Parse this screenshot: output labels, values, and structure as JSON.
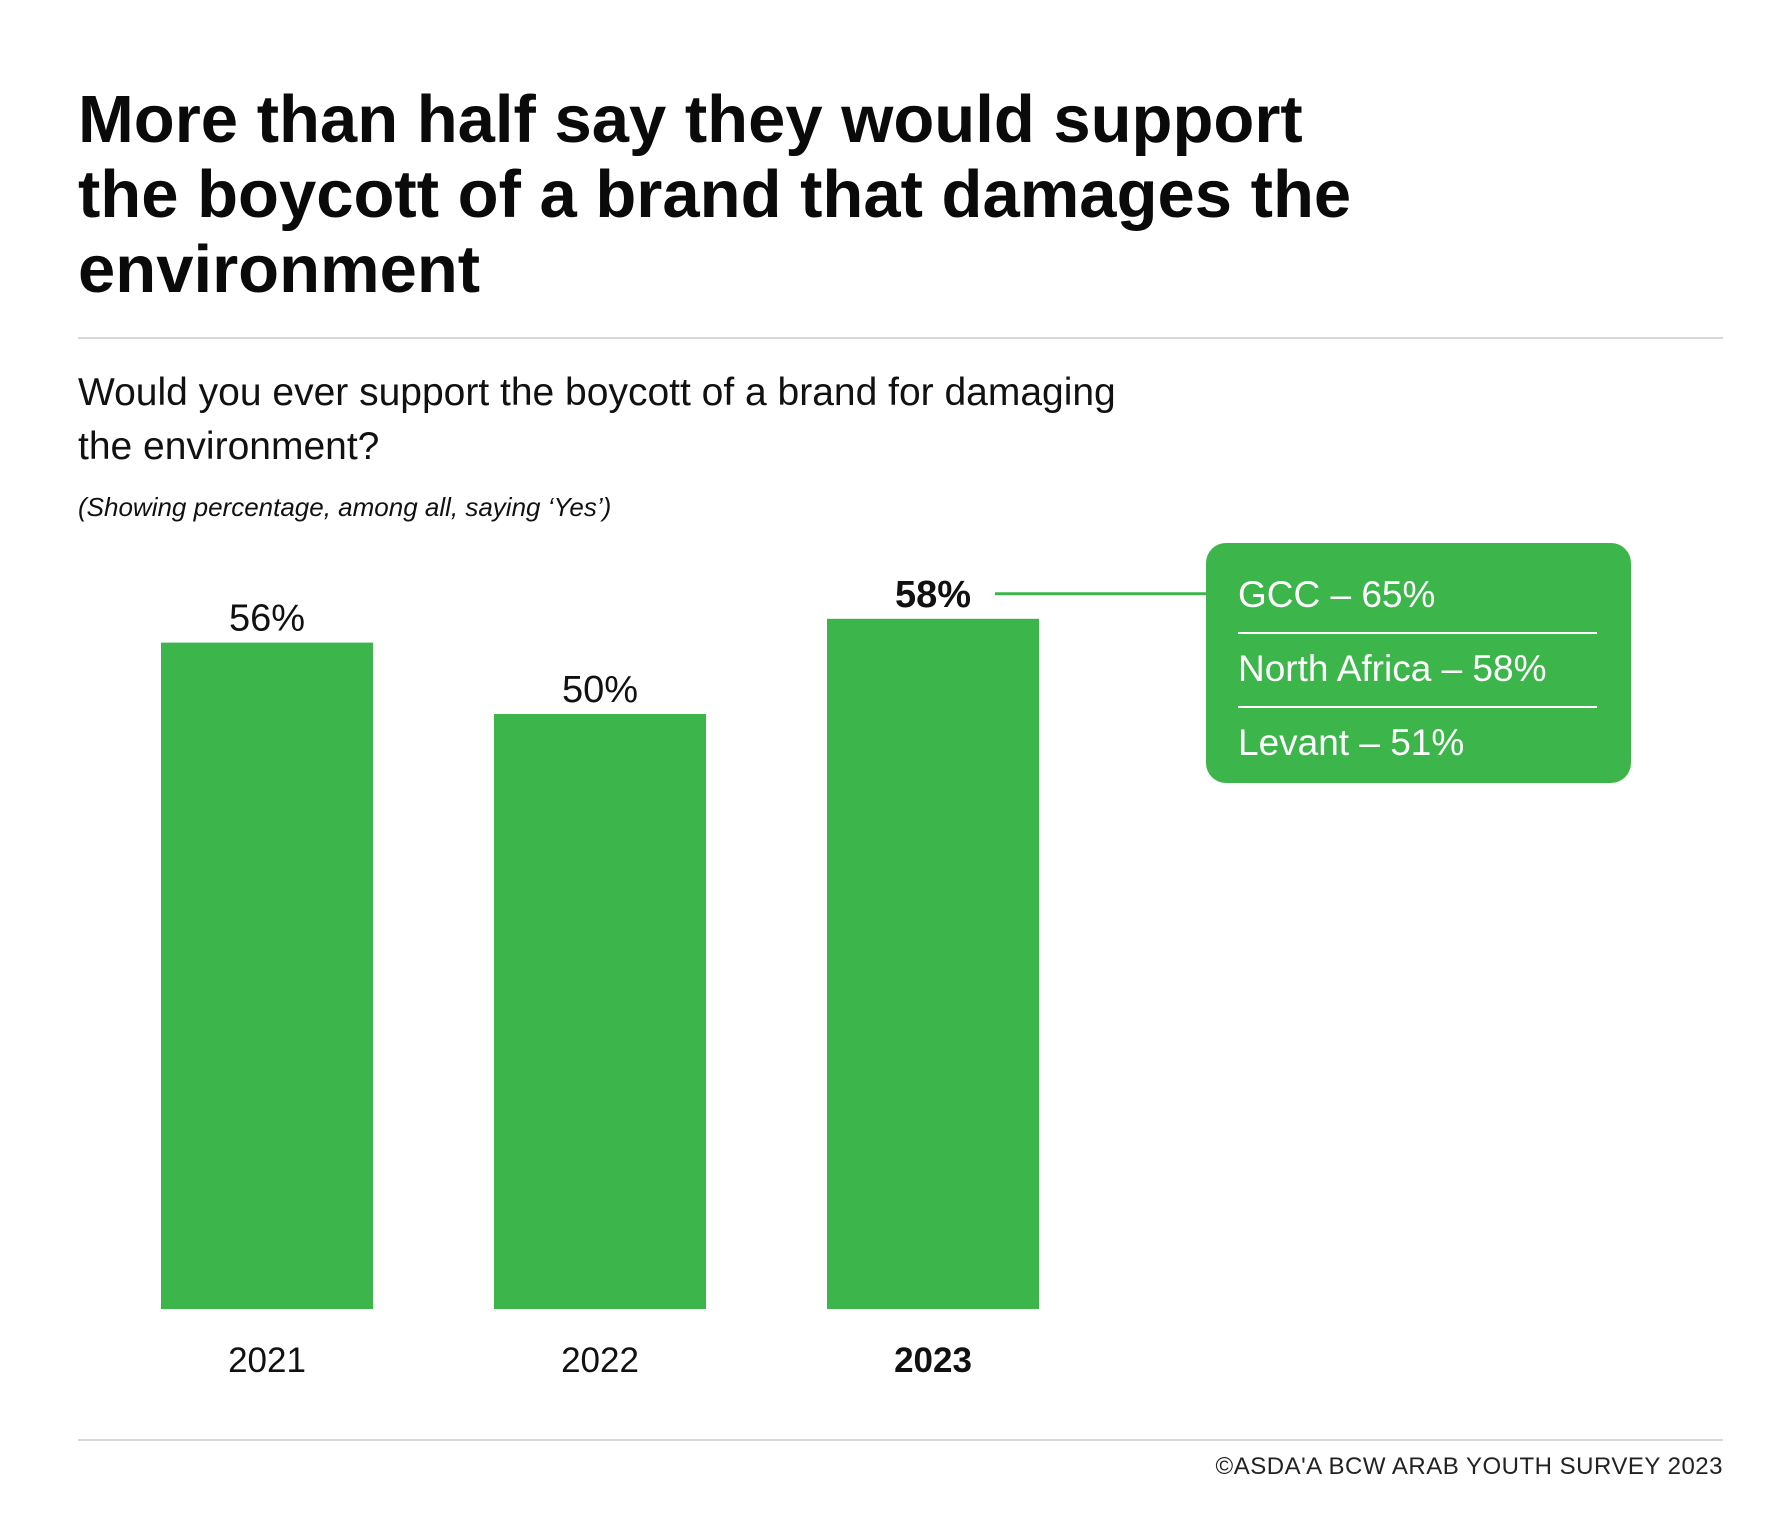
{
  "title": "More than half say they would support the boycott of a brand that damages the environment",
  "question": "Would you ever support the boycott of a brand for damaging the environment?",
  "note": "(Showing percentage, among all, saying ‘Yes’)",
  "source": "©ASDA'A BCW ARAB YOUTH SURVEY 2023",
  "colors": {
    "bar": "#3cb54a",
    "text": "#111111",
    "rule": "#d8d8d8"
  },
  "chart_data": {
    "type": "bar",
    "categories": [
      "2021",
      "2022",
      "2023"
    ],
    "values": [
      56,
      50,
      58
    ],
    "value_labels": [
      "56%",
      "50%",
      "58%"
    ],
    "highlight": "2023",
    "unit": "%",
    "title": "Would you ever support the boycott of a brand for damaging the environment?",
    "subtitle": "(Showing percentage, among all, saying ‘Yes’)",
    "grid": false,
    "callout": {
      "attached_to": "2023",
      "rows": [
        "GCC  – 65%",
        "North Africa – 58%",
        "Levant – 51%"
      ],
      "breakdown": [
        {
          "region": "GCC",
          "value": 65
        },
        {
          "region": "North Africa",
          "value": 58
        },
        {
          "region": "Levant",
          "value": 51
        }
      ]
    }
  }
}
